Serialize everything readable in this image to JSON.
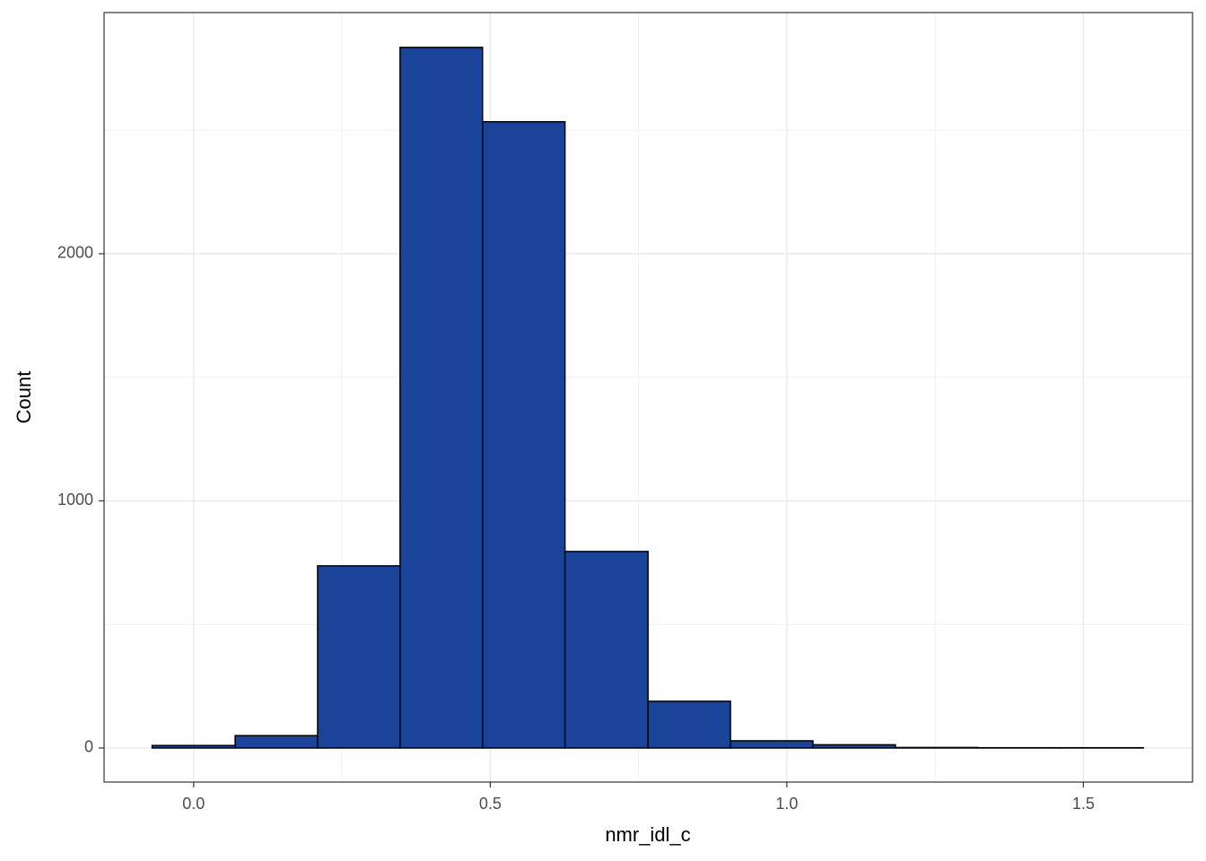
{
  "chart_data": {
    "type": "histogram",
    "x_label": "nmr_idl_c",
    "y_label": "Count",
    "bins": [
      -0.07,
      0.07,
      0.209,
      0.348,
      0.487,
      0.626,
      0.766,
      0.905,
      1.044,
      1.183,
      1.322,
      1.461,
      1.601
    ],
    "values": [
      10,
      50,
      737,
      2835,
      2534,
      795,
      189,
      29,
      13,
      2,
      1,
      1
    ],
    "color": "#1a4499",
    "edge_color": "#000000",
    "xlim": [
      -0.151,
      1.684
    ],
    "ylim": [
      -138,
      2976
    ],
    "xticks": [
      {
        "value": 0,
        "label": "0.0"
      },
      0.5,
      {
        "value": 1,
        "label": "1.0"
      },
      1.5
    ],
    "yticks": [
      0,
      1000,
      2000
    ],
    "x_minor_ticks": [
      0.25,
      0.75,
      1.25
    ],
    "y_minor_ticks": [
      500,
      1500,
      2500
    ],
    "grid": true
  }
}
